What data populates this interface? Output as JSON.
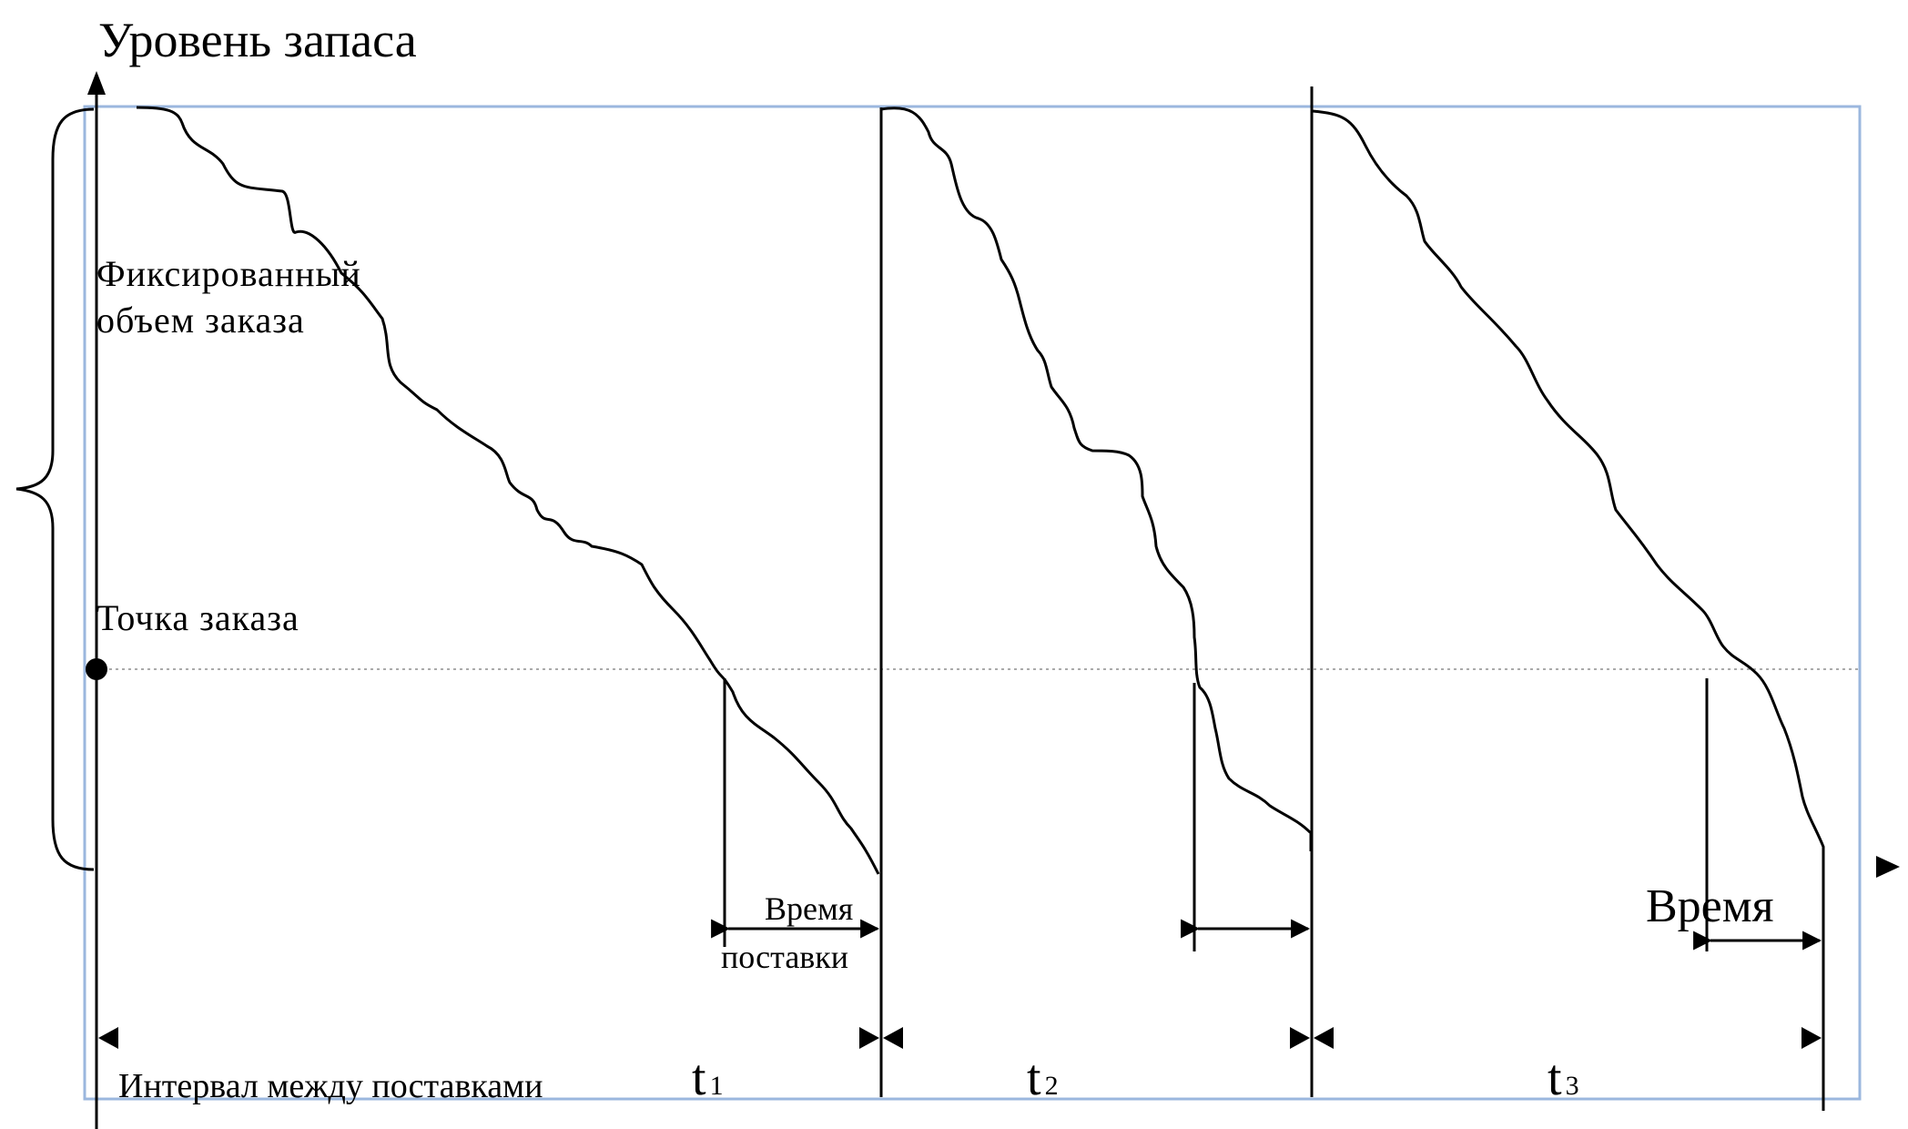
{
  "diagram": {
    "y_axis_title": "Уровень запаса",
    "fixed_order_label_line1": "Фиксированный",
    "fixed_order_label_line2": "объем заказа",
    "reorder_point_label": "Точка заказа",
    "lead_time_label_line1": "Время",
    "lead_time_label_line2": "поставки",
    "lead_time_label_third": "Время",
    "interval_label": "Интервал между поставками",
    "periods": [
      {
        "t": "t",
        "sub": "1"
      },
      {
        "t": "t",
        "sub": "2"
      },
      {
        "t": "t",
        "sub": "3"
      }
    ],
    "colors": {
      "frame": "#9bb7de",
      "line": "#000000",
      "reorder_line": "#aaaaaa"
    }
  }
}
